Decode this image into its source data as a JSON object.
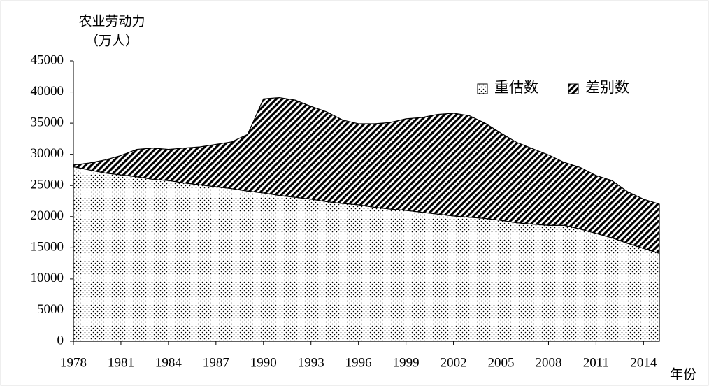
{
  "chart_data": {
    "type": "stacked_area",
    "y_axis_label": [
      "农业劳动力",
      "（万人）"
    ],
    "x_axis_label": "年份",
    "x": [
      1978,
      1979,
      1980,
      1981,
      1982,
      1983,
      1984,
      1985,
      1986,
      1987,
      1988,
      1989,
      1990,
      1991,
      1992,
      1993,
      1994,
      1995,
      1996,
      1997,
      1998,
      1999,
      2000,
      2001,
      2002,
      2003,
      2004,
      2005,
      2006,
      2007,
      2008,
      2009,
      2010,
      2011,
      2012,
      2013,
      2014,
      2015
    ],
    "series": [
      {
        "name": "重估数",
        "pattern": "dots",
        "color": "#000000",
        "values": [
          28000,
          27500,
          27000,
          26700,
          26400,
          26000,
          25800,
          25400,
          25100,
          24800,
          24500,
          24100,
          23800,
          23400,
          23100,
          22800,
          22400,
          22100,
          21900,
          21500,
          21200,
          21000,
          20700,
          20400,
          20100,
          19900,
          19700,
          19400,
          19000,
          18800,
          18600,
          18600,
          18000,
          17300,
          16600,
          15700,
          14900,
          14100
        ]
      },
      {
        "name": "差别数",
        "pattern": "hatch",
        "color": "#000000",
        "values": [
          300,
          1100,
          2100,
          3100,
          4400,
          5000,
          5000,
          5600,
          6100,
          6800,
          7500,
          9100,
          15100,
          15700,
          15600,
          14900,
          14400,
          13400,
          13000,
          13400,
          13900,
          14700,
          15200,
          16000,
          16500,
          16300,
          15300,
          14000,
          12900,
          12100,
          11300,
          10100,
          9900,
          9300,
          9200,
          8300,
          7900,
          7900
        ]
      }
    ],
    "xlim": [
      1978,
      2015
    ],
    "xticks": [
      1978,
      1981,
      1984,
      1987,
      1990,
      1993,
      1996,
      1999,
      2002,
      2005,
      2008,
      2011,
      2014
    ],
    "ylim": [
      0,
      45000
    ],
    "yticks": [
      0,
      5000,
      10000,
      15000,
      20000,
      25000,
      30000,
      35000,
      40000,
      45000
    ],
    "legend": "upper right"
  }
}
